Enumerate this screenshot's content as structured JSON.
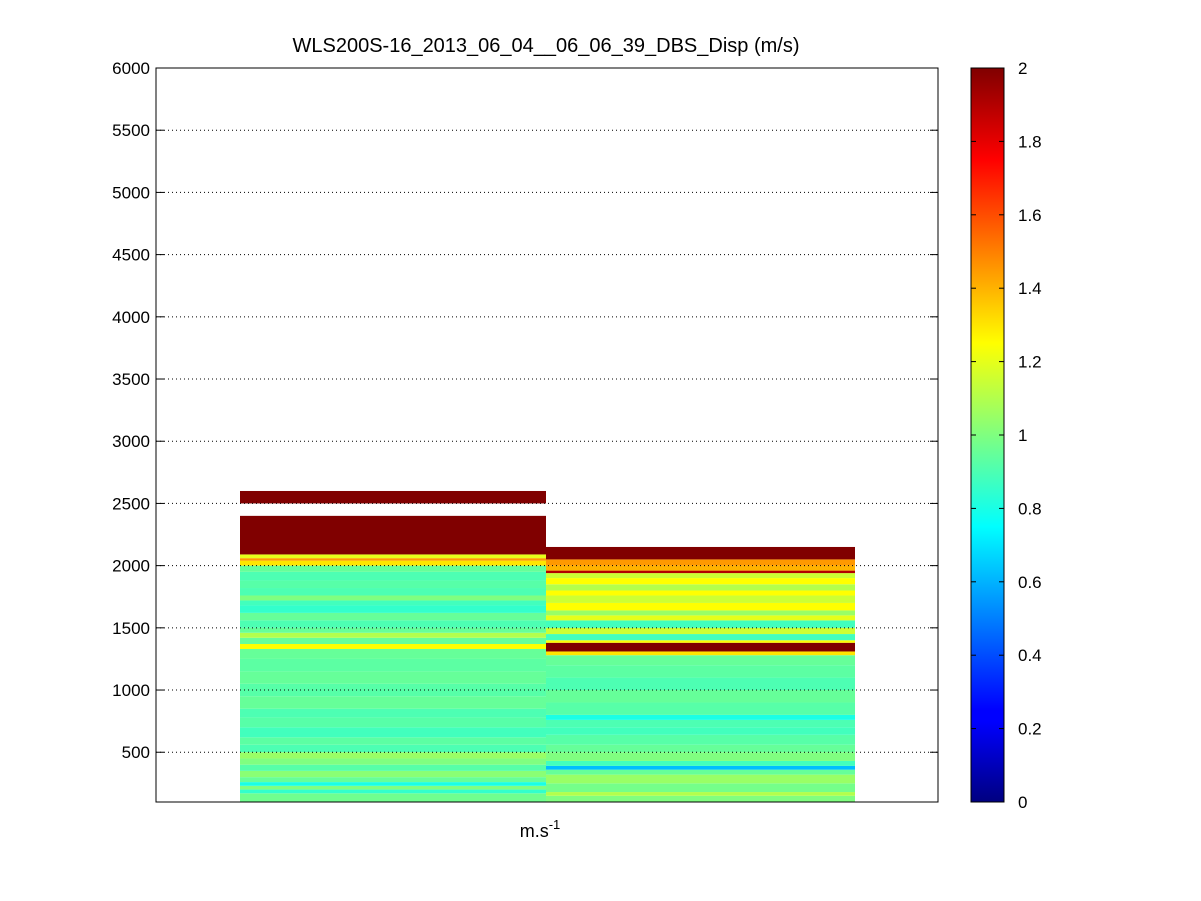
{
  "chart_data": {
    "type": "heatmap",
    "title": "WLS200S-16_2013_06_04__06_06_39_DBS_Disp (m/s)",
    "xlabel": "m.s",
    "xlabel_superscript": "-1",
    "ylabel": "",
    "ylim": [
      100,
      6000
    ],
    "yticks": [
      500,
      1000,
      1500,
      2000,
      2500,
      3000,
      3500,
      4000,
      4500,
      5000,
      5500,
      6000
    ],
    "grid": "y-dotted",
    "colorbar": {
      "colormap": "jet",
      "range": [
        0,
        2
      ],
      "ticks": [
        0,
        0.2,
        0.4,
        0.6,
        0.8,
        1,
        1.2,
        1.4,
        1.6,
        1.8,
        2
      ]
    },
    "columns": [
      {
        "bins": [
          [
            100,
            170,
            0.97
          ],
          [
            170,
            200,
            0.85
          ],
          [
            200,
            230,
            1.0
          ],
          [
            230,
            260,
            0.8
          ],
          [
            260,
            300,
            0.95
          ],
          [
            300,
            350,
            1.02
          ],
          [
            350,
            400,
            0.92
          ],
          [
            400,
            450,
            1.0
          ],
          [
            450,
            500,
            1.05
          ],
          [
            500,
            560,
            0.9
          ],
          [
            560,
            620,
            0.93
          ],
          [
            620,
            700,
            0.88
          ],
          [
            700,
            780,
            0.92
          ],
          [
            780,
            850,
            0.9
          ],
          [
            850,
            950,
            0.95
          ],
          [
            950,
            1050,
            0.92
          ],
          [
            1050,
            1150,
            0.95
          ],
          [
            1150,
            1250,
            0.93
          ],
          [
            1250,
            1330,
            0.95
          ],
          [
            1330,
            1370,
            1.25
          ],
          [
            1370,
            1420,
            0.95
          ],
          [
            1420,
            1460,
            1.1
          ],
          [
            1460,
            1500,
            0.95
          ],
          [
            1500,
            1560,
            0.9
          ],
          [
            1560,
            1620,
            0.95
          ],
          [
            1620,
            1680,
            0.85
          ],
          [
            1680,
            1720,
            0.88
          ],
          [
            1720,
            1760,
            1.0
          ],
          [
            1760,
            1820,
            0.9
          ],
          [
            1820,
            1880,
            0.92
          ],
          [
            1880,
            1950,
            0.9
          ],
          [
            1950,
            2000,
            0.95
          ],
          [
            2000,
            2040,
            1.3
          ],
          [
            2040,
            2060,
            1.45
          ],
          [
            2060,
            2090,
            1.2
          ],
          [
            2090,
            2400,
            2.0
          ],
          [
            2500,
            2600,
            2.0
          ]
        ]
      },
      {
        "bins": [
          [
            100,
            150,
            1.0
          ],
          [
            150,
            180,
            1.1
          ],
          [
            180,
            250,
            0.98
          ],
          [
            250,
            320,
            1.05
          ],
          [
            320,
            360,
            0.95
          ],
          [
            360,
            390,
            0.62
          ],
          [
            390,
            430,
            0.88
          ],
          [
            430,
            500,
            1.0
          ],
          [
            500,
            560,
            0.95
          ],
          [
            560,
            640,
            0.92
          ],
          [
            640,
            700,
            0.88
          ],
          [
            700,
            760,
            0.9
          ],
          [
            760,
            800,
            0.8
          ],
          [
            800,
            900,
            0.92
          ],
          [
            900,
            1000,
            0.95
          ],
          [
            1000,
            1100,
            0.9
          ],
          [
            1100,
            1200,
            0.93
          ],
          [
            1200,
            1280,
            0.95
          ],
          [
            1280,
            1310,
            1.3
          ],
          [
            1310,
            1380,
            2.0
          ],
          [
            1380,
            1400,
            1.25
          ],
          [
            1400,
            1450,
            0.88
          ],
          [
            1450,
            1500,
            1.15
          ],
          [
            1500,
            1560,
            0.88
          ],
          [
            1560,
            1600,
            1.2
          ],
          [
            1600,
            1640,
            1.05
          ],
          [
            1640,
            1700,
            1.25
          ],
          [
            1700,
            1760,
            1.15
          ],
          [
            1760,
            1800,
            1.25
          ],
          [
            1800,
            1850,
            1.1
          ],
          [
            1850,
            1900,
            1.25
          ],
          [
            1900,
            1940,
            1.15
          ],
          [
            1940,
            1960,
            1.9
          ],
          [
            1960,
            2000,
            1.4
          ],
          [
            2000,
            2050,
            1.45
          ],
          [
            2050,
            2150,
            2.0
          ]
        ]
      }
    ]
  }
}
